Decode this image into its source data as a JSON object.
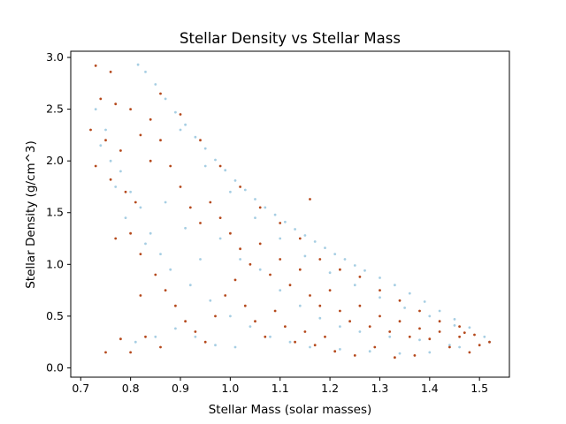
{
  "chart_data": {
    "type": "scatter",
    "title": "Stellar Density vs Stellar Mass",
    "xlabel": "Stellar Mass (solar masses)",
    "ylabel": "Stellar Density (g/cm^3)",
    "xlim": [
      0.68,
      1.56
    ],
    "ylim": [
      -0.09,
      3.06
    ],
    "xticks": [
      0.7,
      0.8,
      0.9,
      1.0,
      1.1,
      1.2,
      1.3,
      1.4,
      1.5
    ],
    "xtick_labels": [
      "0.7",
      "0.8",
      "0.9",
      "1.0",
      "1.1",
      "1.2",
      "1.3",
      "1.4",
      "1.5"
    ],
    "yticks": [
      0.0,
      0.5,
      1.0,
      1.5,
      2.0,
      2.5,
      3.0
    ],
    "ytick_labels": [
      "0.0",
      "0.5",
      "1.0",
      "1.5",
      "2.0",
      "2.5",
      "3.0"
    ],
    "grid": false,
    "legend": "none",
    "colors": {
      "series_a": "#b5491c",
      "series_b": "#a6cee3"
    },
    "series": [
      {
        "color": "#a6cee3",
        "points": [
          [
            0.815,
            2.93
          ],
          [
            0.83,
            2.86
          ],
          [
            0.85,
            2.74
          ],
          [
            0.87,
            2.6
          ],
          [
            0.89,
            2.47
          ],
          [
            0.91,
            2.35
          ],
          [
            0.93,
            2.23
          ],
          [
            0.95,
            2.12
          ],
          [
            0.97,
            2.01
          ],
          [
            0.99,
            1.91
          ],
          [
            1.01,
            1.81
          ],
          [
            1.03,
            1.72
          ],
          [
            1.05,
            1.63
          ],
          [
            1.07,
            1.55
          ],
          [
            1.09,
            1.48
          ],
          [
            1.11,
            1.41
          ],
          [
            1.13,
            1.34
          ],
          [
            1.15,
            1.28
          ],
          [
            1.17,
            1.22
          ],
          [
            1.19,
            1.16
          ],
          [
            1.21,
            1.1
          ],
          [
            1.23,
            1.05
          ],
          [
            1.25,
            0.99
          ],
          [
            1.27,
            0.94
          ],
          [
            1.3,
            0.87
          ],
          [
            1.33,
            0.8
          ],
          [
            1.36,
            0.72
          ],
          [
            1.39,
            0.64
          ],
          [
            1.42,
            0.55
          ],
          [
            1.45,
            0.47
          ],
          [
            1.48,
            0.39
          ],
          [
            1.51,
            0.3
          ],
          [
            0.9,
            2.3
          ],
          [
            0.95,
            1.95
          ],
          [
            1.0,
            1.7
          ],
          [
            1.05,
            1.45
          ],
          [
            1.1,
            1.25
          ],
          [
            1.15,
            1.08
          ],
          [
            1.2,
            0.92
          ],
          [
            1.25,
            0.8
          ],
          [
            1.3,
            0.68
          ],
          [
            1.35,
            0.58
          ],
          [
            1.4,
            0.5
          ],
          [
            1.45,
            0.41
          ],
          [
            0.73,
            2.5
          ],
          [
            0.75,
            2.3
          ],
          [
            0.76,
            2.0
          ],
          [
            0.78,
            1.9
          ],
          [
            0.8,
            1.7
          ],
          [
            0.82,
            1.55
          ],
          [
            0.84,
            1.3
          ],
          [
            0.86,
            1.1
          ],
          [
            0.88,
            0.95
          ],
          [
            0.92,
            0.8
          ],
          [
            0.96,
            0.65
          ],
          [
            1.0,
            0.5
          ],
          [
            1.04,
            0.4
          ],
          [
            1.08,
            0.3
          ],
          [
            1.12,
            0.25
          ],
          [
            1.16,
            0.2
          ],
          [
            1.22,
            0.18
          ],
          [
            1.28,
            0.16
          ],
          [
            1.34,
            0.14
          ],
          [
            1.4,
            0.15
          ],
          [
            1.46,
            0.2
          ],
          [
            1.52,
            0.25
          ],
          [
            0.81,
            0.25
          ],
          [
            0.85,
            0.3
          ],
          [
            0.89,
            0.38
          ],
          [
            0.93,
            0.3
          ],
          [
            0.97,
            0.22
          ],
          [
            1.01,
            0.2
          ],
          [
            0.74,
            2.15
          ],
          [
            0.77,
            1.75
          ],
          [
            0.79,
            1.45
          ],
          [
            0.83,
            1.2
          ],
          [
            0.87,
            1.6
          ],
          [
            0.91,
            1.35
          ],
          [
            0.94,
            1.05
          ],
          [
            0.98,
            1.25
          ],
          [
            1.02,
            1.05
          ],
          [
            1.06,
            0.95
          ],
          [
            1.1,
            0.75
          ],
          [
            1.14,
            0.6
          ],
          [
            1.18,
            0.48
          ],
          [
            1.22,
            0.4
          ],
          [
            1.26,
            0.35
          ],
          [
            1.32,
            0.3
          ],
          [
            1.38,
            0.27
          ],
          [
            1.44,
            0.22
          ]
        ]
      },
      {
        "color": "#b5491c",
        "points": [
          [
            0.73,
            2.92
          ],
          [
            0.76,
            2.86
          ],
          [
            0.74,
            2.6
          ],
          [
            0.77,
            2.55
          ],
          [
            0.72,
            2.3
          ],
          [
            0.75,
            2.2
          ],
          [
            0.78,
            2.1
          ],
          [
            0.73,
            1.95
          ],
          [
            0.76,
            1.82
          ],
          [
            0.79,
            1.7
          ],
          [
            0.81,
            1.6
          ],
          [
            0.84,
            2.4
          ],
          [
            0.86,
            2.2
          ],
          [
            0.88,
            1.95
          ],
          [
            0.9,
            1.75
          ],
          [
            0.92,
            1.55
          ],
          [
            0.94,
            1.4
          ],
          [
            0.96,
            1.6
          ],
          [
            0.98,
            1.45
          ],
          [
            1.0,
            1.3
          ],
          [
            1.02,
            1.15
          ],
          [
            1.04,
            1.0
          ],
          [
            1.06,
            1.2
          ],
          [
            1.08,
            0.9
          ],
          [
            1.1,
            1.05
          ],
          [
            1.12,
            0.8
          ],
          [
            1.14,
            0.95
          ],
          [
            1.16,
            0.7
          ],
          [
            1.18,
            0.6
          ],
          [
            1.2,
            0.75
          ],
          [
            1.22,
            0.55
          ],
          [
            1.24,
            0.45
          ],
          [
            1.26,
            0.6
          ],
          [
            1.28,
            0.4
          ],
          [
            1.3,
            0.5
          ],
          [
            1.32,
            0.35
          ],
          [
            1.34,
            0.45
          ],
          [
            1.36,
            0.3
          ],
          [
            1.38,
            0.38
          ],
          [
            1.4,
            0.28
          ],
          [
            1.42,
            0.35
          ],
          [
            1.44,
            0.2
          ],
          [
            1.46,
            0.3
          ],
          [
            1.48,
            0.15
          ],
          [
            1.5,
            0.22
          ],
          [
            1.52,
            0.25
          ],
          [
            1.47,
            0.34
          ],
          [
            0.82,
            1.1
          ],
          [
            0.85,
            0.9
          ],
          [
            0.87,
            0.75
          ],
          [
            0.89,
            0.6
          ],
          [
            0.91,
            0.45
          ],
          [
            0.93,
            0.35
          ],
          [
            0.95,
            0.25
          ],
          [
            0.97,
            0.5
          ],
          [
            0.99,
            0.7
          ],
          [
            1.01,
            0.85
          ],
          [
            1.03,
            0.6
          ],
          [
            1.05,
            0.45
          ],
          [
            1.07,
            0.3
          ],
          [
            1.09,
            0.55
          ],
          [
            1.11,
            0.4
          ],
          [
            1.13,
            0.25
          ],
          [
            1.15,
            0.35
          ],
          [
            1.17,
            0.22
          ],
          [
            1.19,
            0.3
          ],
          [
            1.21,
            0.16
          ],
          [
            1.25,
            0.12
          ],
          [
            1.29,
            0.2
          ],
          [
            1.33,
            0.1
          ],
          [
            1.37,
            0.12
          ],
          [
            0.8,
            0.15
          ],
          [
            0.83,
            0.3
          ],
          [
            0.86,
            0.2
          ],
          [
            0.75,
            0.15
          ],
          [
            0.78,
            0.28
          ],
          [
            0.86,
            2.65
          ],
          [
            0.9,
            2.45
          ],
          [
            0.94,
            2.2
          ],
          [
            0.98,
            1.95
          ],
          [
            1.02,
            1.75
          ],
          [
            1.06,
            1.55
          ],
          [
            1.1,
            1.4
          ],
          [
            1.14,
            1.25
          ],
          [
            1.16,
            1.63
          ],
          [
            1.18,
            1.05
          ],
          [
            1.22,
            0.95
          ],
          [
            1.26,
            0.88
          ],
          [
            1.3,
            0.75
          ],
          [
            1.34,
            0.65
          ],
          [
            1.38,
            0.55
          ],
          [
            1.42,
            0.45
          ],
          [
            1.46,
            0.4
          ],
          [
            1.49,
            0.32
          ],
          [
            0.8,
            2.5
          ],
          [
            0.82,
            2.25
          ],
          [
            0.84,
            2.0
          ],
          [
            0.8,
            1.3
          ],
          [
            0.82,
            0.7
          ],
          [
            0.77,
            1.25
          ]
        ]
      }
    ]
  }
}
